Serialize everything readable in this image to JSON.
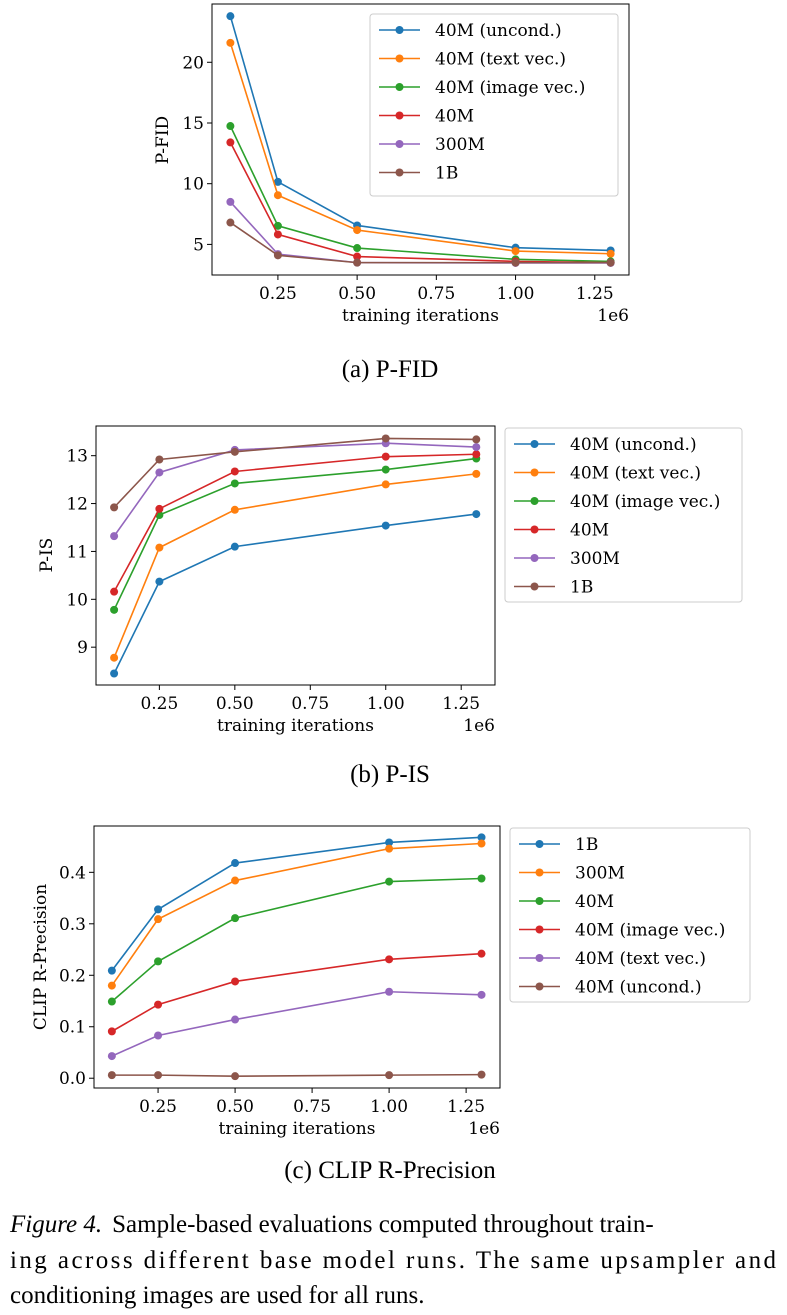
{
  "chart_data": [
    {
      "type": "line",
      "caption": "(a) P-FID",
      "xlabel": "training iterations",
      "ylabel": "P-FID",
      "x_offset_label": "1e6",
      "x": [
        0.1,
        0.25,
        0.5,
        1.0,
        1.3
      ],
      "xlim": [
        0.042,
        1.358
      ],
      "ylim": [
        2.48,
        24.8
      ],
      "xticks": [
        "0.25",
        "0.50",
        "0.75",
        "1.00",
        "1.25"
      ],
      "yticks": [
        "5",
        "10",
        "15",
        "20"
      ],
      "grid": false,
      "legend_position": "upper-right-inside",
      "series": [
        {
          "name": "40M (uncond.)",
          "color": "#1f77b4",
          "values": [
            23.8,
            10.15,
            6.56,
            4.73,
            4.5
          ]
        },
        {
          "name": "40M (text vec.)",
          "color": "#ff7f0e",
          "values": [
            21.6,
            9.05,
            6.18,
            4.45,
            4.23
          ]
        },
        {
          "name": "40M (image vec.)",
          "color": "#2ca02c",
          "values": [
            14.75,
            6.53,
            4.7,
            3.77,
            3.6
          ]
        },
        {
          "name": "40M",
          "color": "#d62728",
          "values": [
            13.4,
            5.82,
            4.0,
            3.6,
            3.5
          ]
        },
        {
          "name": "300M",
          "color": "#9467bd",
          "values": [
            8.5,
            4.2,
            3.5,
            3.47,
            3.47
          ]
        },
        {
          "name": "1B",
          "color": "#8c564b",
          "values": [
            6.8,
            4.1,
            3.5,
            3.5,
            3.5
          ]
        }
      ]
    },
    {
      "type": "line",
      "caption": "(b) P-IS",
      "xlabel": "training iterations",
      "ylabel": "P-IS",
      "x_offset_label": "1e6",
      "x": [
        0.1,
        0.25,
        0.5,
        1.0,
        1.3
      ],
      "xlim": [
        0.04,
        1.362
      ],
      "ylim": [
        8.21,
        13.62
      ],
      "xticks": [
        "0.25",
        "0.50",
        "0.75",
        "1.00",
        "1.25"
      ],
      "yticks": [
        "9",
        "10",
        "11",
        "12",
        "13"
      ],
      "grid": false,
      "legend_position": "right-outside",
      "series": [
        {
          "name": "40M (uncond.)",
          "color": "#1f77b4",
          "values": [
            8.45,
            10.37,
            11.1,
            11.54,
            11.78
          ]
        },
        {
          "name": "40M (text vec.)",
          "color": "#ff7f0e",
          "values": [
            8.78,
            11.08,
            11.87,
            12.4,
            12.62
          ]
        },
        {
          "name": "40M (image vec.)",
          "color": "#2ca02c",
          "values": [
            9.78,
            11.76,
            12.42,
            12.71,
            12.94
          ]
        },
        {
          "name": "40M",
          "color": "#d62728",
          "values": [
            10.16,
            11.89,
            12.67,
            12.98,
            13.03
          ]
        },
        {
          "name": "300M",
          "color": "#9467bd",
          "values": [
            11.32,
            12.65,
            13.12,
            13.26,
            13.18
          ]
        },
        {
          "name": "1B",
          "color": "#8c564b",
          "values": [
            11.92,
            12.92,
            13.08,
            13.36,
            13.34
          ]
        }
      ]
    },
    {
      "type": "line",
      "caption": "(c) CLIP R-Precision",
      "xlabel": "training iterations",
      "ylabel": "CLIP R-Precision",
      "x_offset_label": "1e6",
      "x": [
        0.1,
        0.25,
        0.5,
        1.0,
        1.3
      ],
      "xlim": [
        0.042,
        1.36
      ],
      "ylim": [
        -0.019,
        0.49
      ],
      "xticks": [
        "0.25",
        "0.50",
        "0.75",
        "1.00",
        "1.25"
      ],
      "yticks": [
        "0.0",
        "0.1",
        "0.2",
        "0.3",
        "0.4"
      ],
      "grid": false,
      "legend_position": "right-outside",
      "series": [
        {
          "name": "1B",
          "color": "#1f77b4",
          "values": [
            0.209,
            0.328,
            0.418,
            0.458,
            0.468
          ]
        },
        {
          "name": "300M",
          "color": "#ff7f0e",
          "values": [
            0.18,
            0.309,
            0.384,
            0.446,
            0.456
          ]
        },
        {
          "name": "40M",
          "color": "#2ca02c",
          "values": [
            0.149,
            0.227,
            0.311,
            0.382,
            0.388
          ]
        },
        {
          "name": "40M (image vec.)",
          "color": "#d62728",
          "values": [
            0.091,
            0.143,
            0.188,
            0.231,
            0.242
          ]
        },
        {
          "name": "40M (text vec.)",
          "color": "#9467bd",
          "values": [
            0.043,
            0.083,
            0.114,
            0.168,
            0.162
          ]
        },
        {
          "name": "40M (uncond.)",
          "color": "#8c564b",
          "values": [
            0.006,
            0.006,
            0.004,
            0.006,
            0.007
          ]
        }
      ]
    }
  ],
  "figure_caption": {
    "label": "Figure 4.",
    "lines": [
      "Sample-based evaluations computed throughout train-",
      "ing across different base model runs.  The same upsampler and",
      "conditioning images are used for all runs."
    ]
  }
}
